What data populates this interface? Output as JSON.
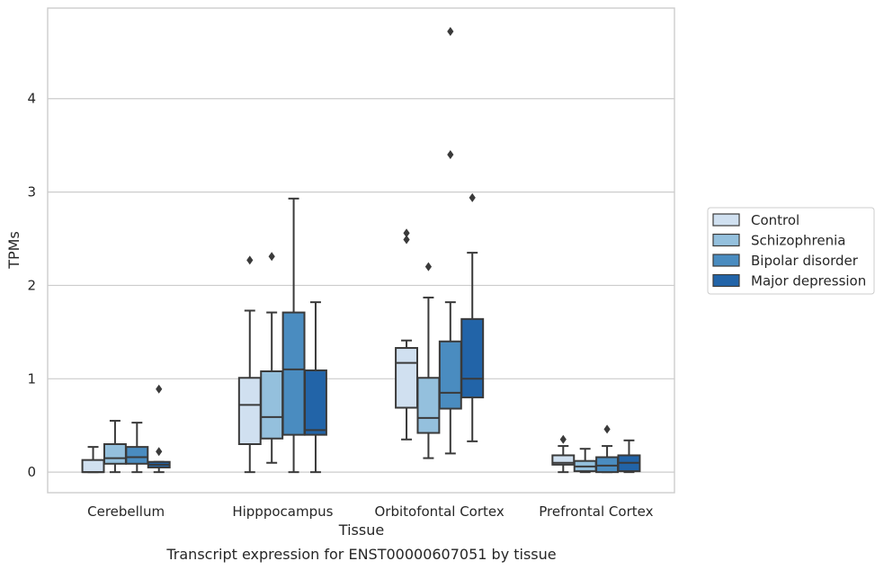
{
  "chart_data": {
    "type": "box",
    "caption": "Transcript expression for ENST00000607051 by tissue",
    "xlabel": "Tissue",
    "ylabel": "TPMs",
    "ylim": [
      -0.22,
      4.97
    ],
    "yticks": [
      0,
      1,
      2,
      3,
      4
    ],
    "grid": true,
    "legend_position": "right",
    "categories": [
      "Cerebellum",
      "Hipppocampus",
      "Orbitofontal Cortex",
      "Prefrontal Cortex"
    ],
    "series": [
      {
        "name": "Control",
        "color": "#d0e0f0",
        "boxes": [
          {
            "whisker_low": 0.0,
            "q1": 0.0,
            "median": 0.0,
            "q3": 0.13,
            "whisker_high": 0.27,
            "outliers": []
          },
          {
            "whisker_low": 0.0,
            "q1": 0.3,
            "median": 0.72,
            "q3": 1.01,
            "whisker_high": 1.73,
            "outliers": [
              2.27
            ]
          },
          {
            "whisker_low": 0.35,
            "q1": 0.69,
            "median": 1.17,
            "q3": 1.33,
            "whisker_high": 1.41,
            "outliers": [
              2.49,
              2.56
            ]
          },
          {
            "whisker_low": 0.0,
            "q1": 0.08,
            "median": 0.1,
            "q3": 0.18,
            "whisker_high": 0.28,
            "outliers": [
              0.35
            ]
          }
        ]
      },
      {
        "name": "Schizophrenia",
        "color": "#94c0dd",
        "boxes": [
          {
            "whisker_low": 0.0,
            "q1": 0.09,
            "median": 0.15,
            "q3": 0.3,
            "whisker_high": 0.55,
            "outliers": []
          },
          {
            "whisker_low": 0.1,
            "q1": 0.36,
            "median": 0.59,
            "q3": 1.08,
            "whisker_high": 1.71,
            "outliers": [
              2.31
            ]
          },
          {
            "whisker_low": 0.15,
            "q1": 0.42,
            "median": 0.58,
            "q3": 1.01,
            "whisker_high": 1.87,
            "outliers": [
              2.2
            ]
          },
          {
            "whisker_low": 0.0,
            "q1": 0.01,
            "median": 0.06,
            "q3": 0.12,
            "whisker_high": 0.25,
            "outliers": []
          }
        ]
      },
      {
        "name": "Bipolar disorder",
        "color": "#4a8cc0",
        "boxes": [
          {
            "whisker_low": 0.0,
            "q1": 0.09,
            "median": 0.16,
            "q3": 0.27,
            "whisker_high": 0.53,
            "outliers": []
          },
          {
            "whisker_low": 0.0,
            "q1": 0.4,
            "median": 1.1,
            "q3": 1.71,
            "whisker_high": 2.93,
            "outliers": []
          },
          {
            "whisker_low": 0.2,
            "q1": 0.68,
            "median": 0.85,
            "q3": 1.4,
            "whisker_high": 1.82,
            "outliers": [
              3.4,
              4.72
            ]
          },
          {
            "whisker_low": 0.0,
            "q1": 0.0,
            "median": 0.07,
            "q3": 0.16,
            "whisker_high": 0.28,
            "outliers": [
              0.46
            ]
          }
        ]
      },
      {
        "name": "Major depression",
        "color": "#2264a8",
        "boxes": [
          {
            "whisker_low": 0.0,
            "q1": 0.05,
            "median": 0.08,
            "q3": 0.11,
            "whisker_high": 0.11,
            "outliers": [
              0.22,
              0.89
            ]
          },
          {
            "whisker_low": 0.0,
            "q1": 0.4,
            "median": 0.45,
            "q3": 1.09,
            "whisker_high": 1.82,
            "outliers": []
          },
          {
            "whisker_low": 0.33,
            "q1": 0.8,
            "median": 1.0,
            "q3": 1.64,
            "whisker_high": 2.35,
            "outliers": [
              2.94
            ]
          },
          {
            "whisker_low": 0.0,
            "q1": 0.01,
            "median": 0.1,
            "q3": 0.18,
            "whisker_high": 0.34,
            "outliers": []
          }
        ]
      }
    ]
  }
}
